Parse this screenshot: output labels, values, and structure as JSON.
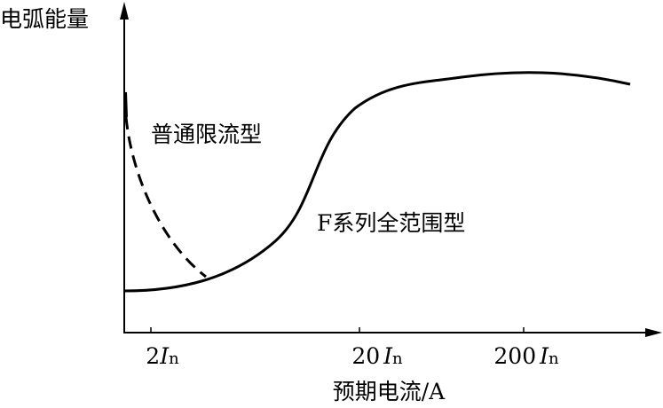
{
  "y_axis": {
    "label": "电弧能量"
  },
  "x_axis": {
    "label": "预期电流/A",
    "ticks": [
      {
        "coefficient": "2",
        "symbol": "I",
        "subscript": "n"
      },
      {
        "coefficient": "20",
        "symbol": "I",
        "subscript": "n"
      },
      {
        "coefficient": "200",
        "symbol": "I",
        "subscript": "n"
      }
    ]
  },
  "curves": [
    {
      "label": "普通限流型"
    },
    {
      "label": "F系列全范围型"
    }
  ]
}
